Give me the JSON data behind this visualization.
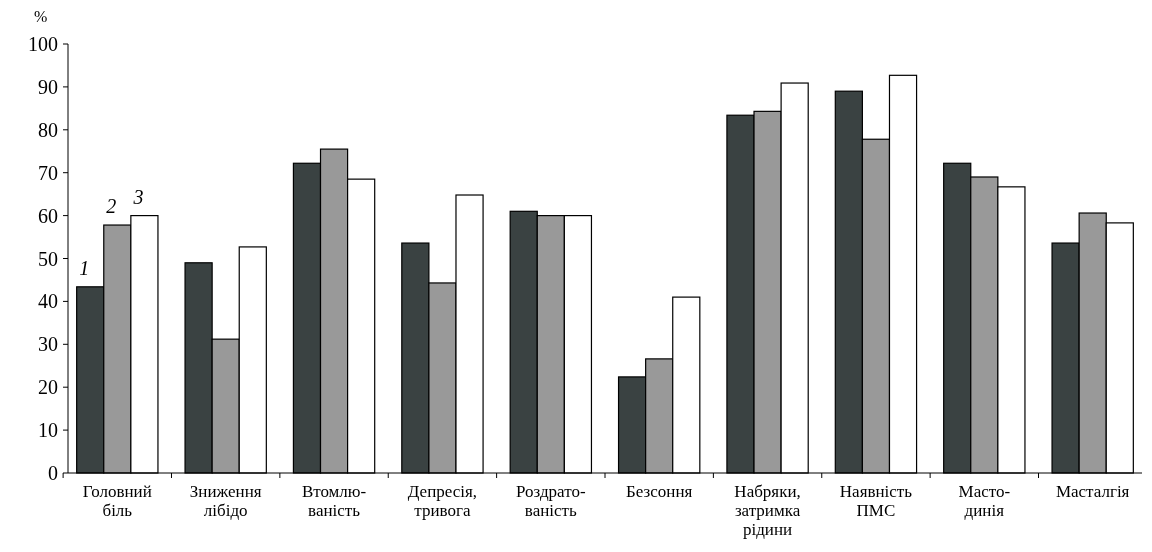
{
  "chart_data": {
    "type": "bar",
    "ylabel": "%",
    "categories": [
      "Головний\nбіль",
      "Зниження\nлібідо",
      "Втомлю-\nваність",
      "Депресія,\nтривога",
      "Роздрато-\nваність",
      "Безсоння",
      "Набряки,\nзатримка\nрідини",
      "Наявність\nПМС",
      "Масто-\nдинія",
      "Масталгія"
    ],
    "series": [
      {
        "name": "1",
        "color": "#3a4242",
        "values": [
          43.4,
          49,
          72.2,
          53.6,
          61,
          22.4,
          83.4,
          89,
          72.2,
          53.6
        ]
      },
      {
        "name": "2",
        "color": "#999999",
        "values": [
          57.8,
          31.2,
          75.5,
          44.3,
          60,
          26.6,
          84.3,
          77.8,
          69,
          60.6
        ]
      },
      {
        "name": "3",
        "color": "#ffffff",
        "values": [
          60,
          52.7,
          68.5,
          64.8,
          60,
          41,
          90.9,
          92.7,
          66.7,
          58.3
        ]
      }
    ],
    "ylim": [
      0,
      100
    ],
    "yticks": [
      0,
      10,
      20,
      30,
      40,
      50,
      60,
      70,
      80,
      90,
      100
    ],
    "grid": false
  }
}
